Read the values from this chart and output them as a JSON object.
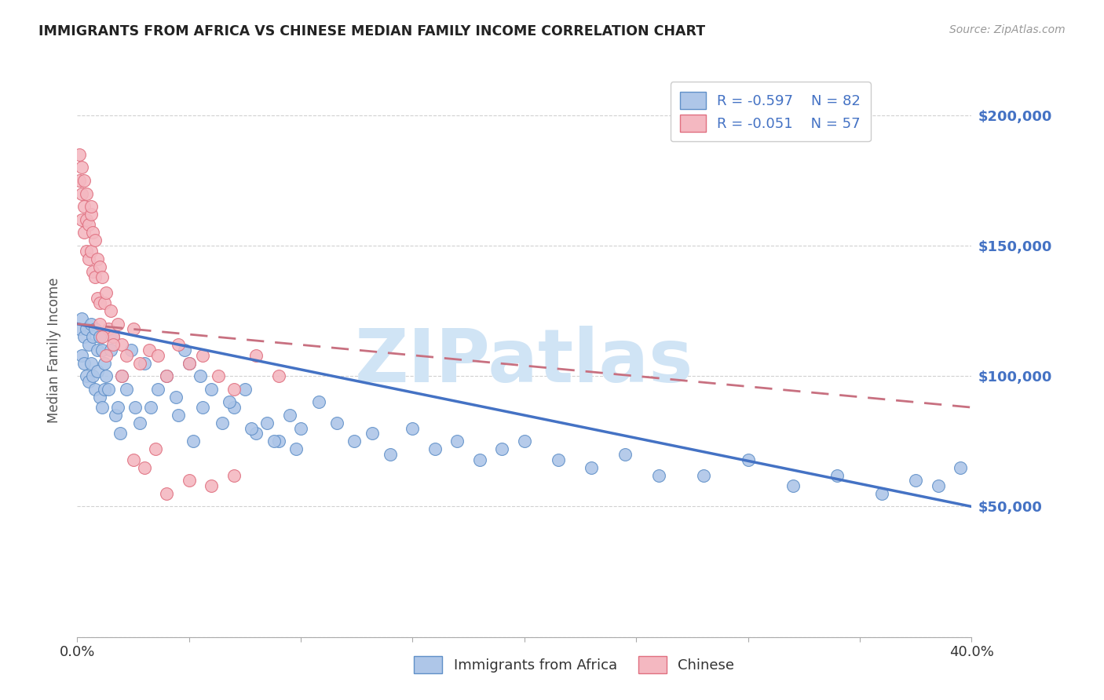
{
  "title": "IMMIGRANTS FROM AFRICA VS CHINESE MEDIAN FAMILY INCOME CORRELATION CHART",
  "source": "Source: ZipAtlas.com",
  "ylabel": "Median Family Income",
  "legend_label_1": "Immigrants from Africa",
  "legend_label_2": "Chinese",
  "legend_r1": "R = -0.597",
  "legend_n1": "N = 82",
  "legend_r2": "R = -0.051",
  "legend_n2": "N = 57",
  "xlim": [
    0.0,
    0.4
  ],
  "ylim": [
    0,
    220000
  ],
  "yticks": [
    0,
    50000,
    100000,
    150000,
    200000
  ],
  "ytick_labels": [
    "",
    "$50,000",
    "$100,000",
    "$150,000",
    "$200,000"
  ],
  "xticks": [
    0.0,
    0.05,
    0.1,
    0.15,
    0.2,
    0.25,
    0.3,
    0.35,
    0.4
  ],
  "color_africa": "#aec6e8",
  "color_chinese": "#f4b8c1",
  "color_africa_edge": "#6090c8",
  "color_chinese_edge": "#e07080",
  "color_africa_line": "#4472c4",
  "color_chinese_line": "#c87080",
  "color_ytick_label": "#4472c4",
  "watermark_text": "ZIPatlas",
  "watermark_color": "#d0e4f5",
  "africa_x": [
    0.001,
    0.002,
    0.002,
    0.003,
    0.003,
    0.004,
    0.004,
    0.005,
    0.005,
    0.006,
    0.006,
    0.007,
    0.007,
    0.008,
    0.008,
    0.009,
    0.009,
    0.01,
    0.01,
    0.011,
    0.011,
    0.012,
    0.012,
    0.013,
    0.014,
    0.015,
    0.016,
    0.017,
    0.018,
    0.019,
    0.02,
    0.022,
    0.024,
    0.026,
    0.028,
    0.03,
    0.033,
    0.036,
    0.04,
    0.044,
    0.048,
    0.052,
    0.056,
    0.06,
    0.065,
    0.07,
    0.075,
    0.08,
    0.085,
    0.09,
    0.095,
    0.1,
    0.108,
    0.116,
    0.124,
    0.132,
    0.14,
    0.15,
    0.16,
    0.17,
    0.18,
    0.19,
    0.2,
    0.215,
    0.23,
    0.245,
    0.26,
    0.28,
    0.3,
    0.32,
    0.34,
    0.36,
    0.375,
    0.385,
    0.395,
    0.05,
    0.045,
    0.055,
    0.068,
    0.078,
    0.088,
    0.098
  ],
  "africa_y": [
    118000,
    122000,
    108000,
    115000,
    105000,
    118000,
    100000,
    112000,
    98000,
    120000,
    105000,
    115000,
    100000,
    118000,
    95000,
    110000,
    102000,
    115000,
    92000,
    110000,
    88000,
    105000,
    95000,
    100000,
    95000,
    110000,
    115000,
    85000,
    88000,
    78000,
    100000,
    95000,
    110000,
    88000,
    82000,
    105000,
    88000,
    95000,
    100000,
    92000,
    110000,
    75000,
    88000,
    95000,
    82000,
    88000,
    95000,
    78000,
    82000,
    75000,
    85000,
    80000,
    90000,
    82000,
    75000,
    78000,
    70000,
    80000,
    72000,
    75000,
    68000,
    72000,
    75000,
    68000,
    65000,
    70000,
    62000,
    62000,
    68000,
    58000,
    62000,
    55000,
    60000,
    58000,
    65000,
    105000,
    85000,
    100000,
    90000,
    80000,
    75000,
    72000
  ],
  "chinese_x": [
    0.001,
    0.001,
    0.002,
    0.002,
    0.002,
    0.003,
    0.003,
    0.003,
    0.004,
    0.004,
    0.004,
    0.005,
    0.005,
    0.006,
    0.006,
    0.006,
    0.007,
    0.007,
    0.008,
    0.008,
    0.009,
    0.009,
    0.01,
    0.01,
    0.011,
    0.012,
    0.013,
    0.014,
    0.015,
    0.016,
    0.018,
    0.02,
    0.022,
    0.025,
    0.028,
    0.032,
    0.036,
    0.04,
    0.045,
    0.05,
    0.056,
    0.063,
    0.07,
    0.08,
    0.09,
    0.01,
    0.011,
    0.013,
    0.016,
    0.02,
    0.025,
    0.03,
    0.035,
    0.04,
    0.05,
    0.06,
    0.07
  ],
  "chinese_y": [
    185000,
    175000,
    180000,
    160000,
    170000,
    175000,
    155000,
    165000,
    160000,
    148000,
    170000,
    158000,
    145000,
    162000,
    148000,
    165000,
    155000,
    140000,
    152000,
    138000,
    145000,
    130000,
    142000,
    128000,
    138000,
    128000,
    132000,
    118000,
    125000,
    115000,
    120000,
    112000,
    108000,
    118000,
    105000,
    110000,
    108000,
    100000,
    112000,
    105000,
    108000,
    100000,
    95000,
    108000,
    100000,
    120000,
    115000,
    108000,
    112000,
    100000,
    68000,
    65000,
    72000,
    55000,
    60000,
    58000,
    62000
  ]
}
